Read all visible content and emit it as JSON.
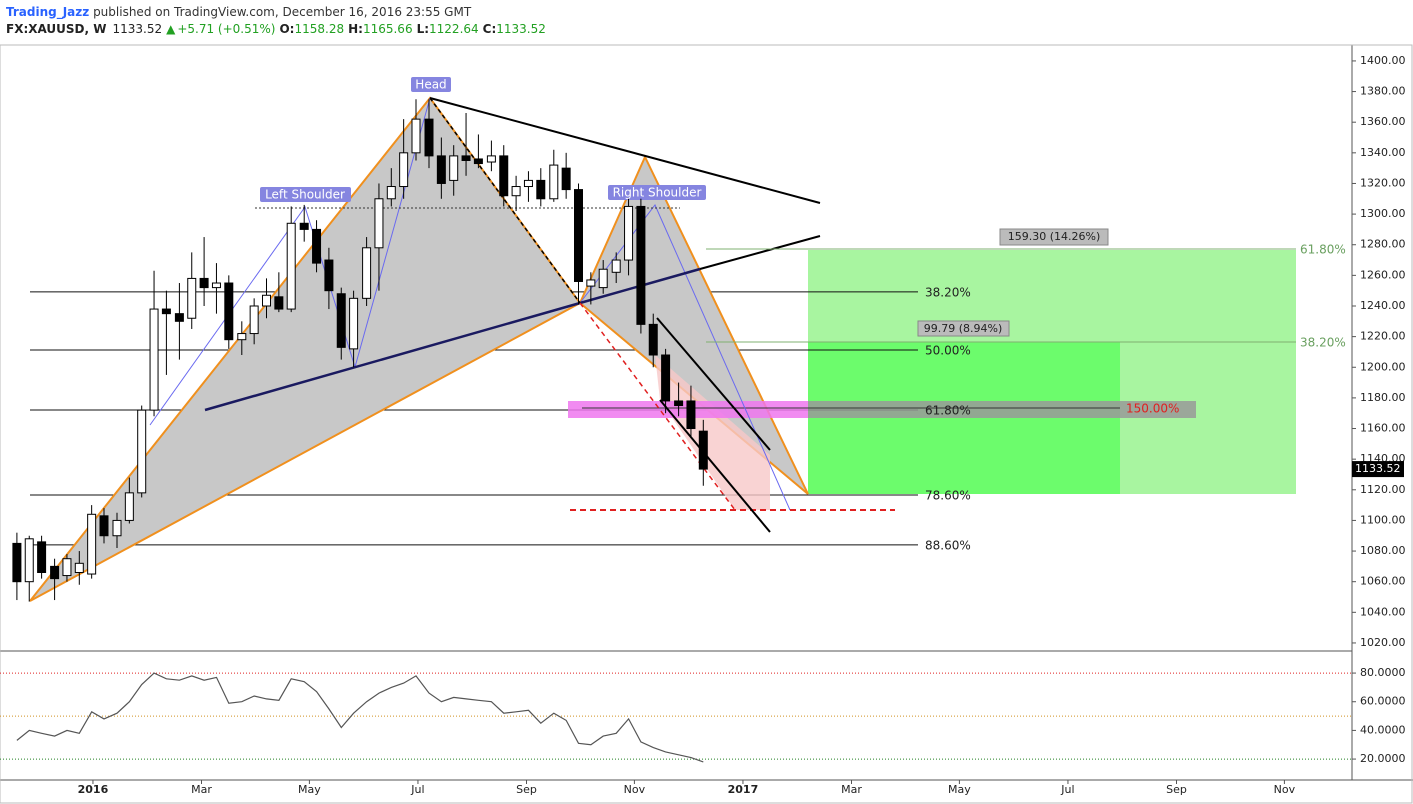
{
  "chart_data": {
    "type": "candlestick",
    "header": {
      "author": "Trading_Jazz",
      "published": " published on TradingView.com, December 16, 2016 23:55 GMT",
      "symbol": "FX:XAUUSD, W",
      "change": "+5.71 (+0.51%)",
      "o": "O:",
      "h": "H:",
      "l": "L:",
      "c": "C:"
    },
    "xlim": [
      2015.857,
      2017.937
    ],
    "xticks": [
      {
        "value": 2016.0,
        "label": "2016"
      },
      {
        "value": 2016.167,
        "label": "Mar"
      },
      {
        "value": 2016.333,
        "label": "May"
      },
      {
        "value": 2016.5,
        "label": "Jul"
      },
      {
        "value": 2016.667,
        "label": "Sep"
      },
      {
        "value": 2016.833,
        "label": "Nov"
      },
      {
        "value": 2017.0,
        "label": "2017"
      },
      {
        "value": 2017.167,
        "label": "Mar"
      },
      {
        "value": 2017.333,
        "label": "May"
      },
      {
        "value": 2017.5,
        "label": "Jul"
      },
      {
        "value": 2017.667,
        "label": "Sep"
      },
      {
        "value": 2017.833,
        "label": "Nov"
      }
    ],
    "ylim": [
      1015.4,
      1410.4
    ],
    "yticks": [
      {
        "value": 1020,
        "label": "1020.00"
      },
      {
        "value": 1040,
        "label": "1040.00"
      },
      {
        "value": 1060,
        "label": "1060.00"
      },
      {
        "value": 1080,
        "label": "1080.00"
      },
      {
        "value": 1100,
        "label": "1100.00"
      },
      {
        "value": 1120,
        "label": "1120.00"
      },
      {
        "value": 1140,
        "label": "1140.00"
      },
      {
        "value": 1160,
        "label": "1160.00"
      },
      {
        "value": 1180,
        "label": "1180.00"
      },
      {
        "value": 1200,
        "label": "1200.00"
      },
      {
        "value": 1220,
        "label": "1220.00"
      },
      {
        "value": 1240,
        "label": "1240.00"
      },
      {
        "value": 1260,
        "label": "1260.00"
      },
      {
        "value": 1280,
        "label": "1280.00"
      },
      {
        "value": 1300,
        "label": "1300.00"
      },
      {
        "value": 1320,
        "label": "1320.00"
      },
      {
        "value": 1340,
        "label": "1340.00"
      },
      {
        "value": 1360,
        "label": "1360.00"
      },
      {
        "value": 1380,
        "label": "1380.00"
      },
      {
        "value": 1400,
        "label": "1400.00"
      }
    ],
    "x": [
      2015.883,
      2015.902,
      2015.921,
      2015.941,
      2015.96,
      2015.979,
      2015.998,
      2016.017,
      2016.037,
      2016.056,
      2016.075,
      2016.094,
      2016.113,
      2016.133,
      2016.152,
      2016.171,
      2016.19,
      2016.209,
      2016.229,
      2016.248,
      2016.267,
      2016.286,
      2016.305,
      2016.325,
      2016.344,
      2016.363,
      2016.382,
      2016.401,
      2016.421,
      2016.44,
      2016.459,
      2016.478,
      2016.497,
      2016.517,
      2016.536,
      2016.555,
      2016.574,
      2016.593,
      2016.613,
      2016.632,
      2016.651,
      2016.67,
      2016.689,
      2016.709,
      2016.728,
      2016.747,
      2016.766,
      2016.785,
      2016.805,
      2016.824,
      2016.843,
      2016.862,
      2016.881,
      2016.901,
      2016.92,
      2016.939
    ],
    "open": [
      1085,
      1060,
      1086,
      1070,
      1064,
      1066,
      1065,
      1103,
      1090,
      1100,
      1118,
      1172,
      1238,
      1235,
      1232,
      1258,
      1252,
      1255,
      1218,
      1222,
      1240,
      1246,
      1238,
      1294,
      1290,
      1270,
      1248,
      1212,
      1245,
      1278,
      1310,
      1318,
      1340,
      1362,
      1338,
      1322,
      1338,
      1336,
      1334,
      1338,
      1312,
      1318,
      1322,
      1310,
      1330,
      1316,
      1253,
      1252,
      1262,
      1270,
      1305,
      1228,
      1208,
      1178,
      1178,
      1158.28
    ],
    "high": [
      1092,
      1090,
      1090,
      1075,
      1078,
      1080,
      1110,
      1108,
      1105,
      1128,
      1175,
      1263,
      1250,
      1255,
      1275,
      1285,
      1268,
      1260,
      1230,
      1245,
      1258,
      1262,
      1305,
      1306,
      1296,
      1278,
      1252,
      1250,
      1285,
      1320,
      1330,
      1362,
      1375,
      1375,
      1350,
      1345,
      1366,
      1352,
      1348,
      1345,
      1325,
      1328,
      1330,
      1342,
      1340,
      1320,
      1262,
      1270,
      1275,
      1310,
      1310,
      1235,
      1212,
      1190,
      1188,
      1165.66
    ],
    "low": [
      1048,
      1047,
      1062,
      1048,
      1060,
      1058,
      1062,
      1085,
      1082,
      1098,
      1115,
      1168,
      1195,
      1205,
      1225,
      1240,
      1235,
      1212,
      1208,
      1215,
      1232,
      1236,
      1236,
      1282,
      1262,
      1238,
      1205,
      1200,
      1240,
      1250,
      1305,
      1310,
      1335,
      1330,
      1310,
      1312,
      1325,
      1330,
      1328,
      1305,
      1302,
      1308,
      1305,
      1308,
      1310,
      1241,
      1241,
      1248,
      1255,
      1260,
      1222,
      1200,
      1170,
      1168,
      1155,
      1122.64
    ],
    "close": [
      1060,
      1088,
      1066,
      1062,
      1075,
      1072,
      1104,
      1090,
      1100,
      1118,
      1172,
      1238,
      1235,
      1230,
      1258,
      1252,
      1255,
      1218,
      1222,
      1240,
      1247,
      1238,
      1294,
      1290,
      1268,
      1250,
      1213,
      1245,
      1278,
      1310,
      1318,
      1340,
      1362,
      1338,
      1320,
      1338,
      1335,
      1333,
      1338,
      1312,
      1318,
      1322,
      1310,
      1332,
      1316,
      1256,
      1257,
      1264,
      1270,
      1305,
      1228,
      1208,
      1178,
      1175,
      1160,
      1133.52
    ],
    "up_color": "#ffffff",
    "down_color": "#000000",
    "fib_levels": [
      {
        "label": "38.20%",
        "value": 1249.2
      },
      {
        "label": "50.00%",
        "value": 1211.3
      },
      {
        "label": "61.80%",
        "value": 1172.1
      },
      {
        "label": "78.60%",
        "value": 1116.6
      },
      {
        "label": "88.60%",
        "value": 1084.0
      }
    ],
    "annotations": {
      "head": "Head",
      "left_shoulder": "Left Shoulder",
      "right_shoulder": "Right Shoulder",
      "target1": "159.30 (14.26%)",
      "target2": "99.79 (8.94%)",
      "ext": "150.00%",
      "r1": "61.80%",
      "r2": "38.20%"
    },
    "rsi": {
      "ylim": [
        5.4,
        94.0
      ],
      "yticks": [
        {
          "value": 20,
          "label": "20.0000"
        },
        {
          "value": 40,
          "label": "40.0000"
        },
        {
          "value": 60,
          "label": "60.0000"
        },
        {
          "value": 80,
          "label": "80.0000"
        }
      ],
      "levels": [
        {
          "value": 80,
          "color": "#e02020"
        },
        {
          "value": 50,
          "color": "#d09020"
        },
        {
          "value": 20,
          "color": "#208020"
        }
      ],
      "color": "#555555",
      "values": [
        33,
        40,
        38,
        36,
        40,
        38,
        53,
        48,
        52,
        60,
        72,
        80,
        76,
        75,
        78,
        75,
        77,
        59,
        60,
        64,
        62,
        61,
        76,
        74,
        67,
        55,
        42,
        52,
        60,
        66,
        70,
        73,
        78,
        66,
        60,
        63,
        62,
        61,
        60,
        52,
        53,
        54,
        45,
        52,
        47,
        31,
        30,
        36,
        38,
        48,
        32,
        28,
        25,
        23,
        21,
        18
      ]
    }
  }
}
